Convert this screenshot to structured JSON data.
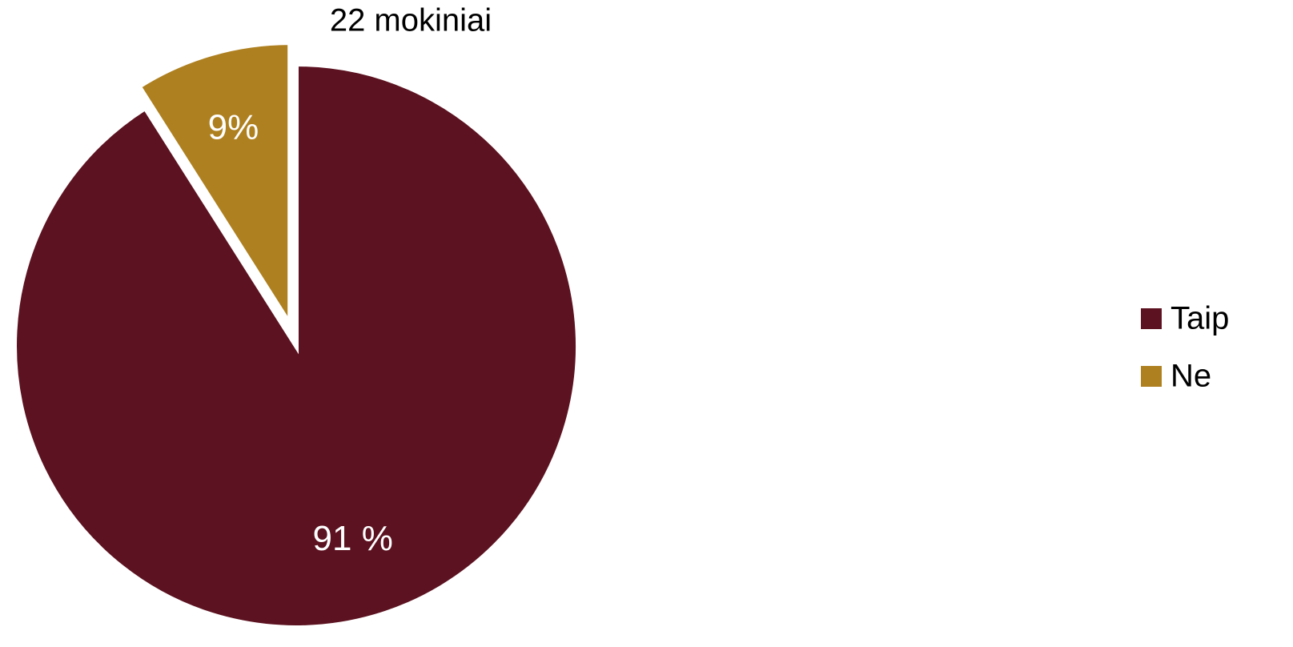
{
  "chart_data": {
    "type": "pie",
    "title": "22 mokiniai",
    "categories": [
      "Taip",
      "Ne"
    ],
    "values": [
      91,
      9
    ],
    "value_labels": [
      "91 %",
      "9%"
    ],
    "colors": [
      "#5c1220",
      "#ae8020"
    ],
    "legend": "right"
  }
}
